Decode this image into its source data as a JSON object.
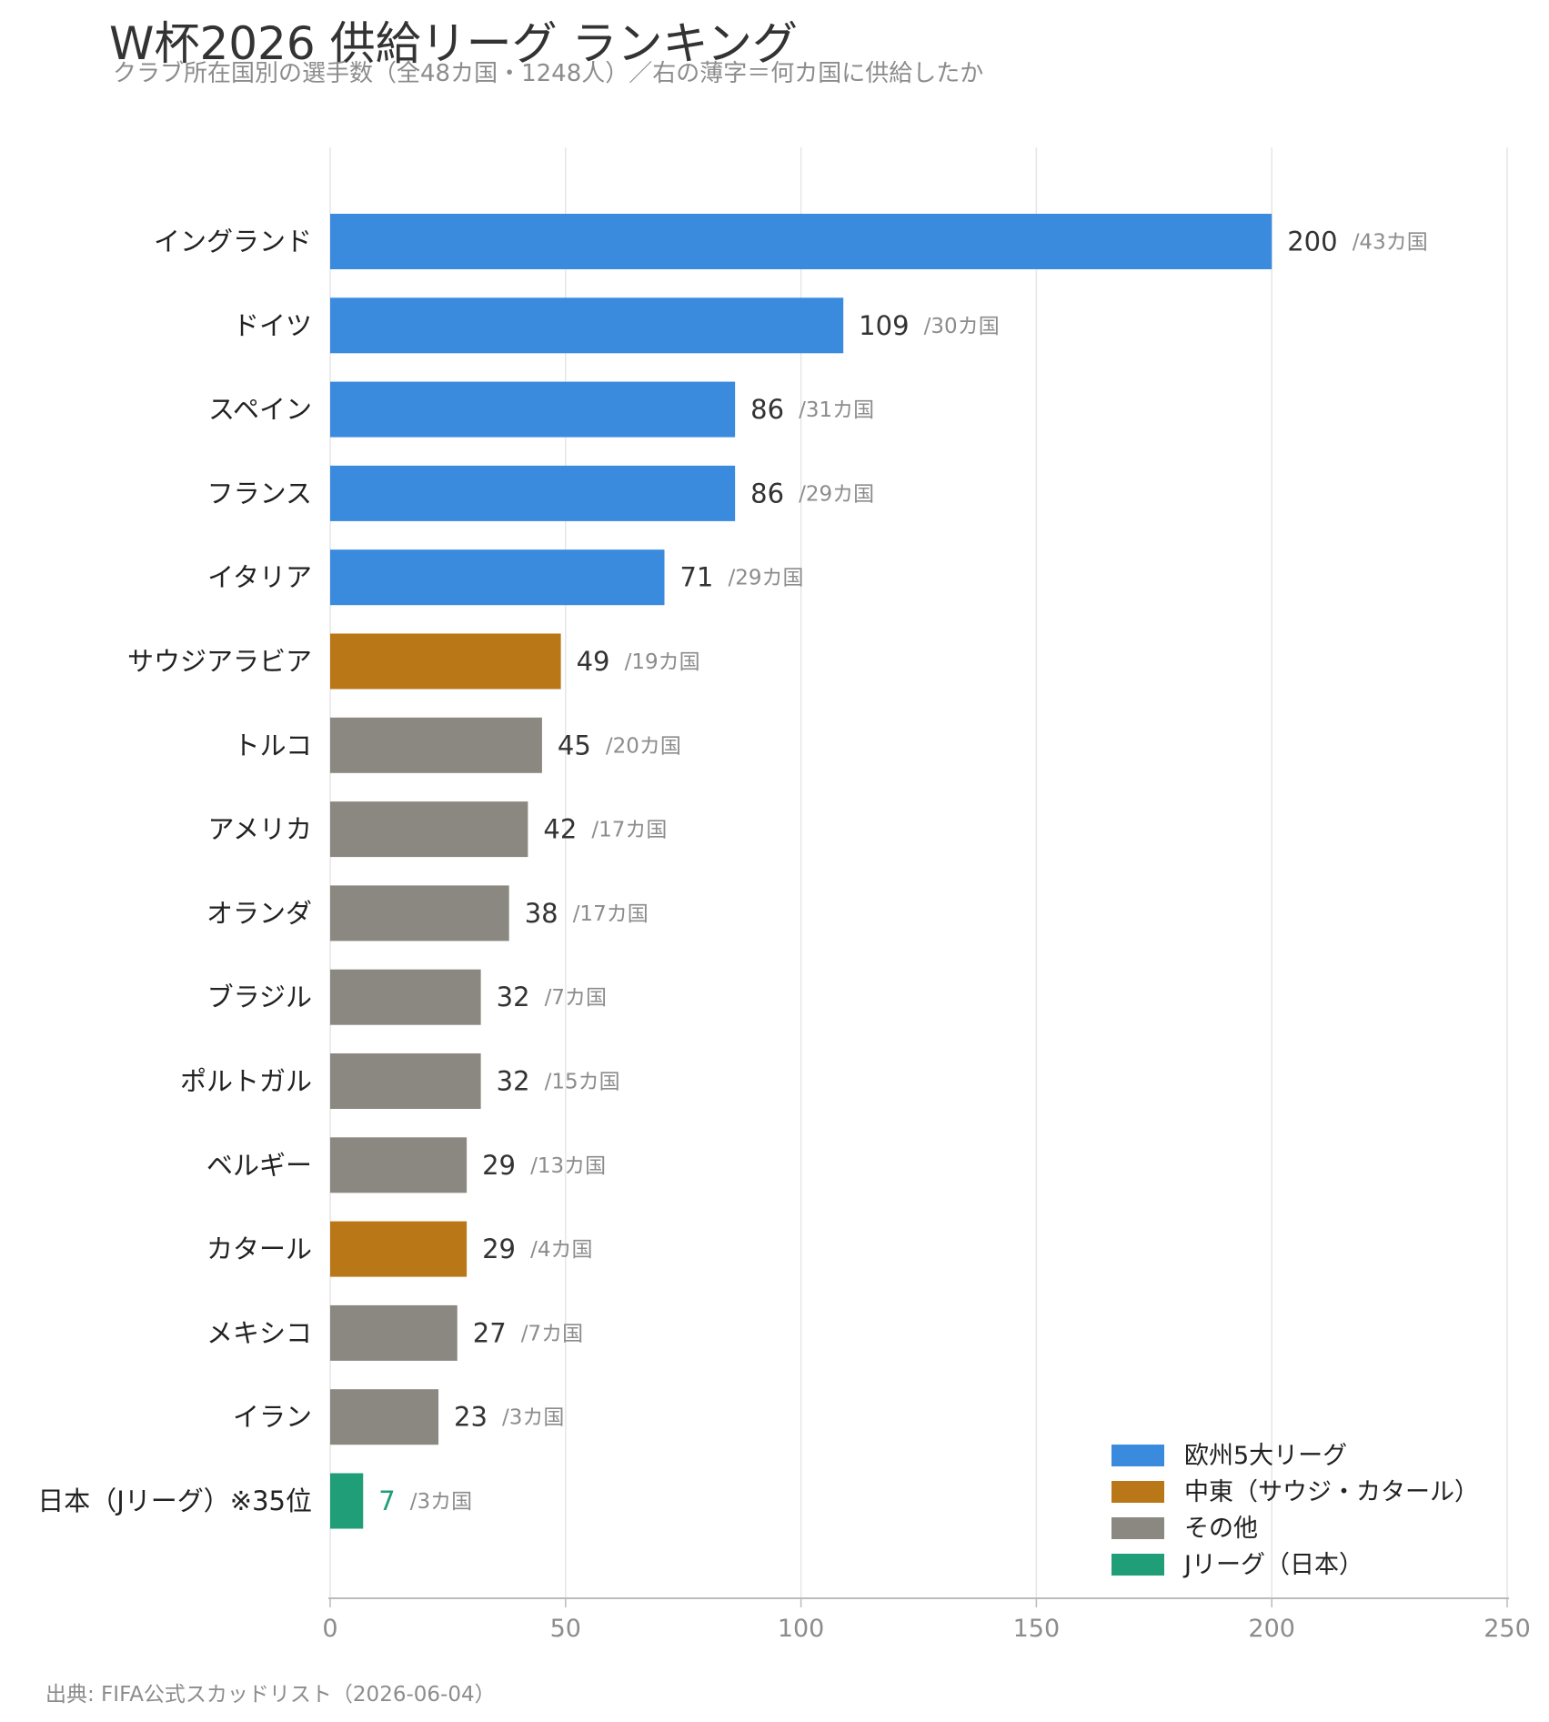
{
  "title": "W杯2026 供給リーグ ランキング",
  "subtitle": "クラブ所在国別の選手数（全48カ国・1248人）／右の薄字＝何カ国に供給したか",
  "source": "出典: FIFA公式スカッドリスト（2026-06-04）",
  "colors": {
    "europe": "#3a8ade",
    "middle_east": "#b97717",
    "other": "#8a8880",
    "jleague": "#1f9e77",
    "value_text": "#333333",
    "count_text": "#8c8c8c"
  },
  "chart_data": {
    "type": "bar",
    "orientation": "horizontal",
    "title": "W杯2026 供給リーグ ランキング",
    "xlim": [
      0,
      250
    ],
    "xticks": [
      0,
      50,
      100,
      150,
      200,
      250
    ],
    "grid": true,
    "legend_position": "bottom-right",
    "legend": [
      {
        "key": "europe",
        "label": "欧州5大リーグ"
      },
      {
        "key": "middle_east",
        "label": "中東（サウジ・カタール）"
      },
      {
        "key": "other",
        "label": "その他"
      },
      {
        "key": "jleague",
        "label": "Jリーグ（日本）"
      }
    ],
    "bars": [
      {
        "label": "イングランド",
        "value": 200,
        "countries": "/43カ国",
        "group": "europe"
      },
      {
        "label": "ドイツ",
        "value": 109,
        "countries": "/30カ国",
        "group": "europe"
      },
      {
        "label": "スペイン",
        "value": 86,
        "countries": "/31カ国",
        "group": "europe"
      },
      {
        "label": "フランス",
        "value": 86,
        "countries": "/29カ国",
        "group": "europe"
      },
      {
        "label": "イタリア",
        "value": 71,
        "countries": "/29カ国",
        "group": "europe"
      },
      {
        "label": "サウジアラビア",
        "value": 49,
        "countries": "/19カ国",
        "group": "middle_east"
      },
      {
        "label": "トルコ",
        "value": 45,
        "countries": "/20カ国",
        "group": "other"
      },
      {
        "label": "アメリカ",
        "value": 42,
        "countries": "/17カ国",
        "group": "other"
      },
      {
        "label": "オランダ",
        "value": 38,
        "countries": "/17カ国",
        "group": "other"
      },
      {
        "label": "ブラジル",
        "value": 32,
        "countries": "/7カ国",
        "group": "other"
      },
      {
        "label": "ポルトガル",
        "value": 32,
        "countries": "/15カ国",
        "group": "other"
      },
      {
        "label": "ベルギー",
        "value": 29,
        "countries": "/13カ国",
        "group": "other"
      },
      {
        "label": "カタール",
        "value": 29,
        "countries": "/4カ国",
        "group": "middle_east"
      },
      {
        "label": "メキシコ",
        "value": 27,
        "countries": "/7カ国",
        "group": "other"
      },
      {
        "label": "イラン",
        "value": 23,
        "countries": "/3カ国",
        "group": "other"
      },
      {
        "label": "日本（Jリーグ）※35位",
        "value": 7,
        "countries": "/3カ国",
        "group": "jleague"
      }
    ]
  }
}
